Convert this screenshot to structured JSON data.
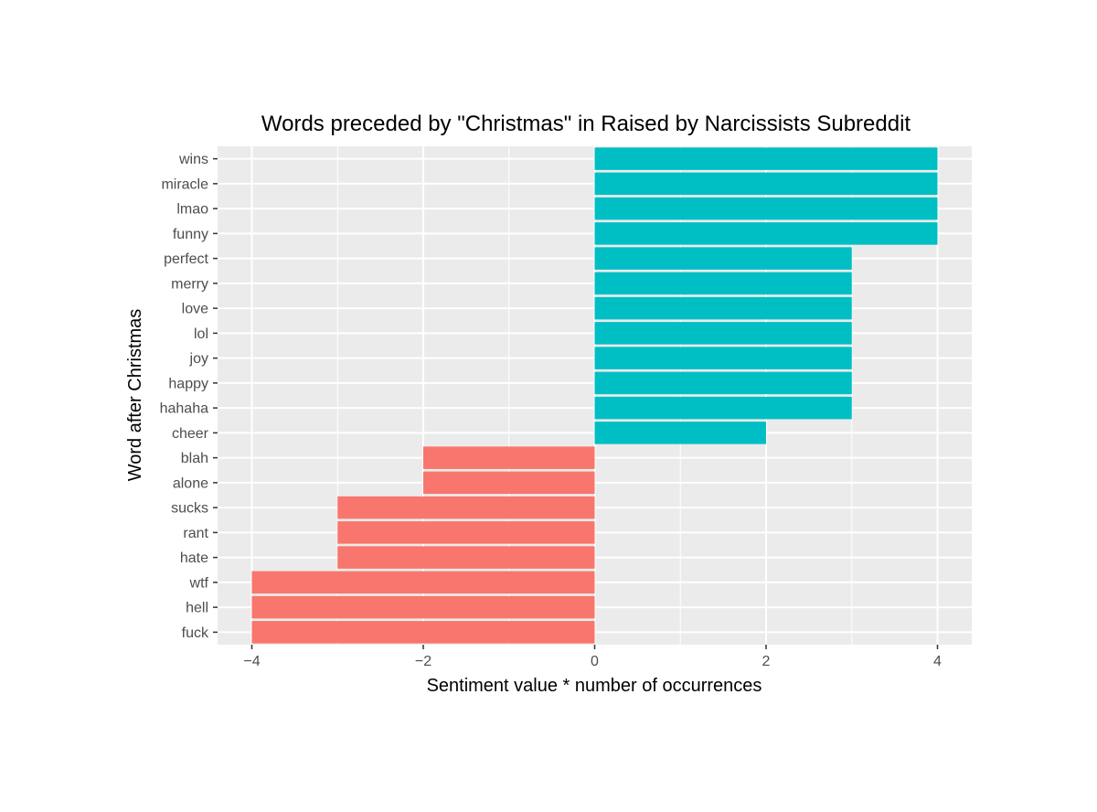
{
  "chart_data": {
    "type": "bar",
    "orientation": "horizontal",
    "title": "Words preceded by \"Christmas\" in Raised by Narcissists Subreddit",
    "xlabel": "Sentiment value * number of occurrences",
    "ylabel": "Word after Christmas",
    "xlim": [
      -4.4,
      4.4
    ],
    "xticks": [
      -4,
      -2,
      0,
      2,
      4
    ],
    "xtick_labels": [
      "−4",
      "−2",
      "0",
      "2",
      "4"
    ],
    "grid": true,
    "legend": "none",
    "categories": [
      "wins",
      "miracle",
      "lmao",
      "funny",
      "perfect",
      "merry",
      "love",
      "lol",
      "joy",
      "happy",
      "hahaha",
      "cheer",
      "blah",
      "alone",
      "sucks",
      "rant",
      "hate",
      "wtf",
      "hell",
      "fuck"
    ],
    "values": [
      4,
      4,
      4,
      4,
      3,
      3,
      3,
      3,
      3,
      3,
      3,
      2,
      -2,
      -2,
      -3,
      -3,
      -3,
      -4,
      -4,
      -4
    ],
    "colors": {
      "positive": "#00BFC4",
      "negative": "#F8766D",
      "panel": "#EBEBEB",
      "grid": "#FFFFFF"
    }
  }
}
